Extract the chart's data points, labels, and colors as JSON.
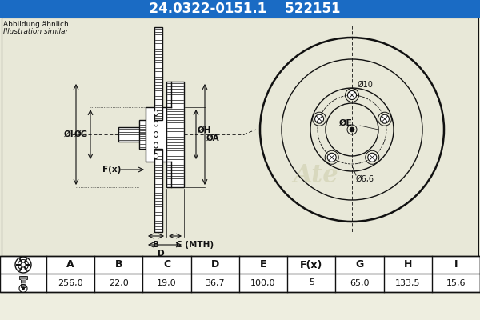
{
  "part_number": "24.0322-0151.1",
  "ref_number": "522151",
  "header_bg": "#1a6bc4",
  "header_text_color": "#ffffff",
  "note_line1": "Abbildung ähnlich",
  "note_line2": "Illustration similar",
  "table_headers": [
    "A",
    "B",
    "C",
    "D",
    "E",
    "F(x)",
    "G",
    "H",
    "I"
  ],
  "table_values": [
    "256,0",
    "22,0",
    "19,0",
    "36,7",
    "100,0",
    "5",
    "65,0",
    "133,5",
    "15,6"
  ],
  "bg_color": "#eeeee0",
  "draw_bg": "#e8e8d8",
  "drawing_color": "#111111",
  "hatch_color": "#333333",
  "watermark_color": "#ccccaa",
  "table_line_color": "#111111",
  "dim_color": "#111111",
  "label_oi": "ØI",
  "label_og": "ØG",
  "label_fx": "F(x)",
  "label_oh": "ØH",
  "label_oa": "ØA",
  "label_b": "B",
  "label_cmth": "C (MTH)",
  "label_d": "D",
  "label_o10": "Ø10",
  "label_oe": "ØE",
  "label_o66": "Ø6,6"
}
